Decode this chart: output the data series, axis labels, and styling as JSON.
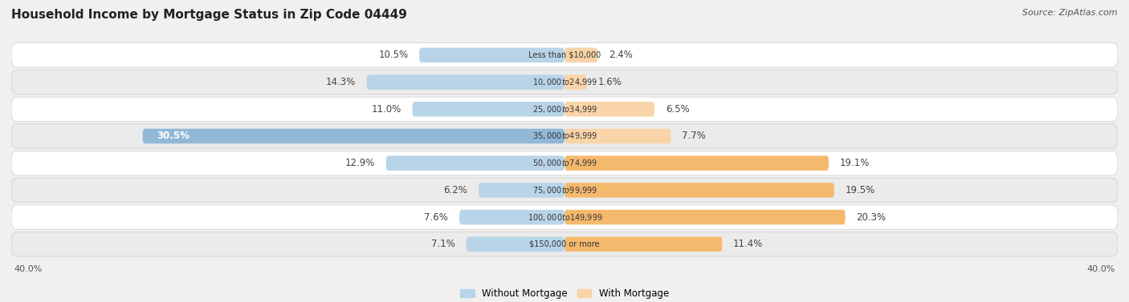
{
  "title": "Household Income by Mortgage Status in Zip Code 04449",
  "source": "Source: ZipAtlas.com",
  "categories": [
    "Less than $10,000",
    "$10,000 to $24,999",
    "$25,000 to $34,999",
    "$35,000 to $49,999",
    "$50,000 to $74,999",
    "$75,000 to $99,999",
    "$100,000 to $149,999",
    "$150,000 or more"
  ],
  "without_mortgage": [
    10.5,
    14.3,
    11.0,
    30.5,
    12.9,
    6.2,
    7.6,
    7.1
  ],
  "with_mortgage": [
    2.4,
    1.6,
    6.5,
    7.7,
    19.1,
    19.5,
    20.3,
    11.4
  ],
  "color_without": "#92b8d8",
  "color_with": "#f5b96e",
  "color_without_light": "#b8d4e8",
  "color_with_light": "#f8d4a8",
  "axis_limit": 40.0,
  "fig_bg": "#f0f0f0",
  "row_bg_dark": "#e8e8e8",
  "row_bg_light": "#f5f5f5",
  "legend_label_without": "Without Mortgage",
  "legend_label_with": "With Mortgage",
  "axis_label_left": "40.0%",
  "axis_label_right": "40.0%",
  "label_fontsize": 8.5,
  "title_fontsize": 11,
  "source_fontsize": 8
}
